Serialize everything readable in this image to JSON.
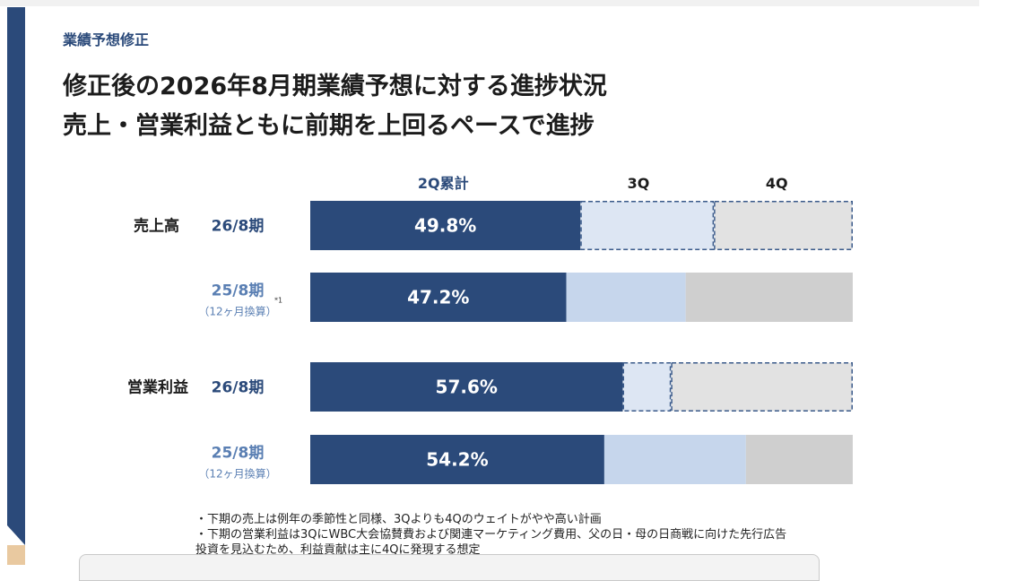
{
  "header": {
    "section_label": "業績予想修正",
    "title_line1": "修正後の2026年8月期業績予想に対する進捗状況",
    "title_line2": "売上・営業利益ともに前期を上回るペースで進捗"
  },
  "colors": {
    "q2_fill": "#2b4a7a",
    "q3_current": "#dde6f3",
    "q3_prior": "#c6d6ec",
    "q4_current": "#e2e2e2",
    "q4_prior": "#cfcfcf",
    "period_blue": "#2b4a7a",
    "period_light_blue": "#5a7fb3",
    "dash_stroke": "#3a5a8a"
  },
  "chart_data": {
    "type": "bar",
    "stacked": true,
    "orientation": "horizontal",
    "xlim": [
      0,
      100
    ],
    "columns": [
      "2Q累計",
      "3Q",
      "4Q"
    ],
    "groups": [
      {
        "label": "売上高",
        "rows": [
          {
            "period": "26/8期",
            "note": "",
            "footnote": "",
            "q2": 49.8,
            "q3": 24.6,
            "q4": 25.6,
            "q2_label": "49.8%",
            "style": "current"
          },
          {
            "period": "25/8期",
            "note": "（12ヶ月換算）",
            "footnote": "*1",
            "q2": 47.2,
            "q3": 22.0,
            "q4": 30.8,
            "q2_label": "47.2%",
            "style": "prior"
          }
        ]
      },
      {
        "label": "営業利益",
        "rows": [
          {
            "period": "26/8期",
            "note": "",
            "footnote": "",
            "q2": 57.6,
            "q3": 8.9,
            "q4": 33.5,
            "q2_label": "57.6%",
            "style": "current"
          },
          {
            "period": "25/8期",
            "note": "（12ヶ月換算）",
            "footnote": "",
            "q2": 54.2,
            "q3": 26.1,
            "q4": 19.7,
            "q2_label": "54.2%",
            "style": "prior"
          }
        ]
      }
    ]
  },
  "notes": [
    "・下期の売上は例年の季節性と同様、3Qよりも4Qのウェイトがやや高い計画",
    "・下期の営業利益は3QにWBC大会協賛費および関連マーケティング費用、父の日・母の日商戦に向けた先行広告",
    "投資を見込むため、利益貢献は主に4Qに発現する想定"
  ]
}
